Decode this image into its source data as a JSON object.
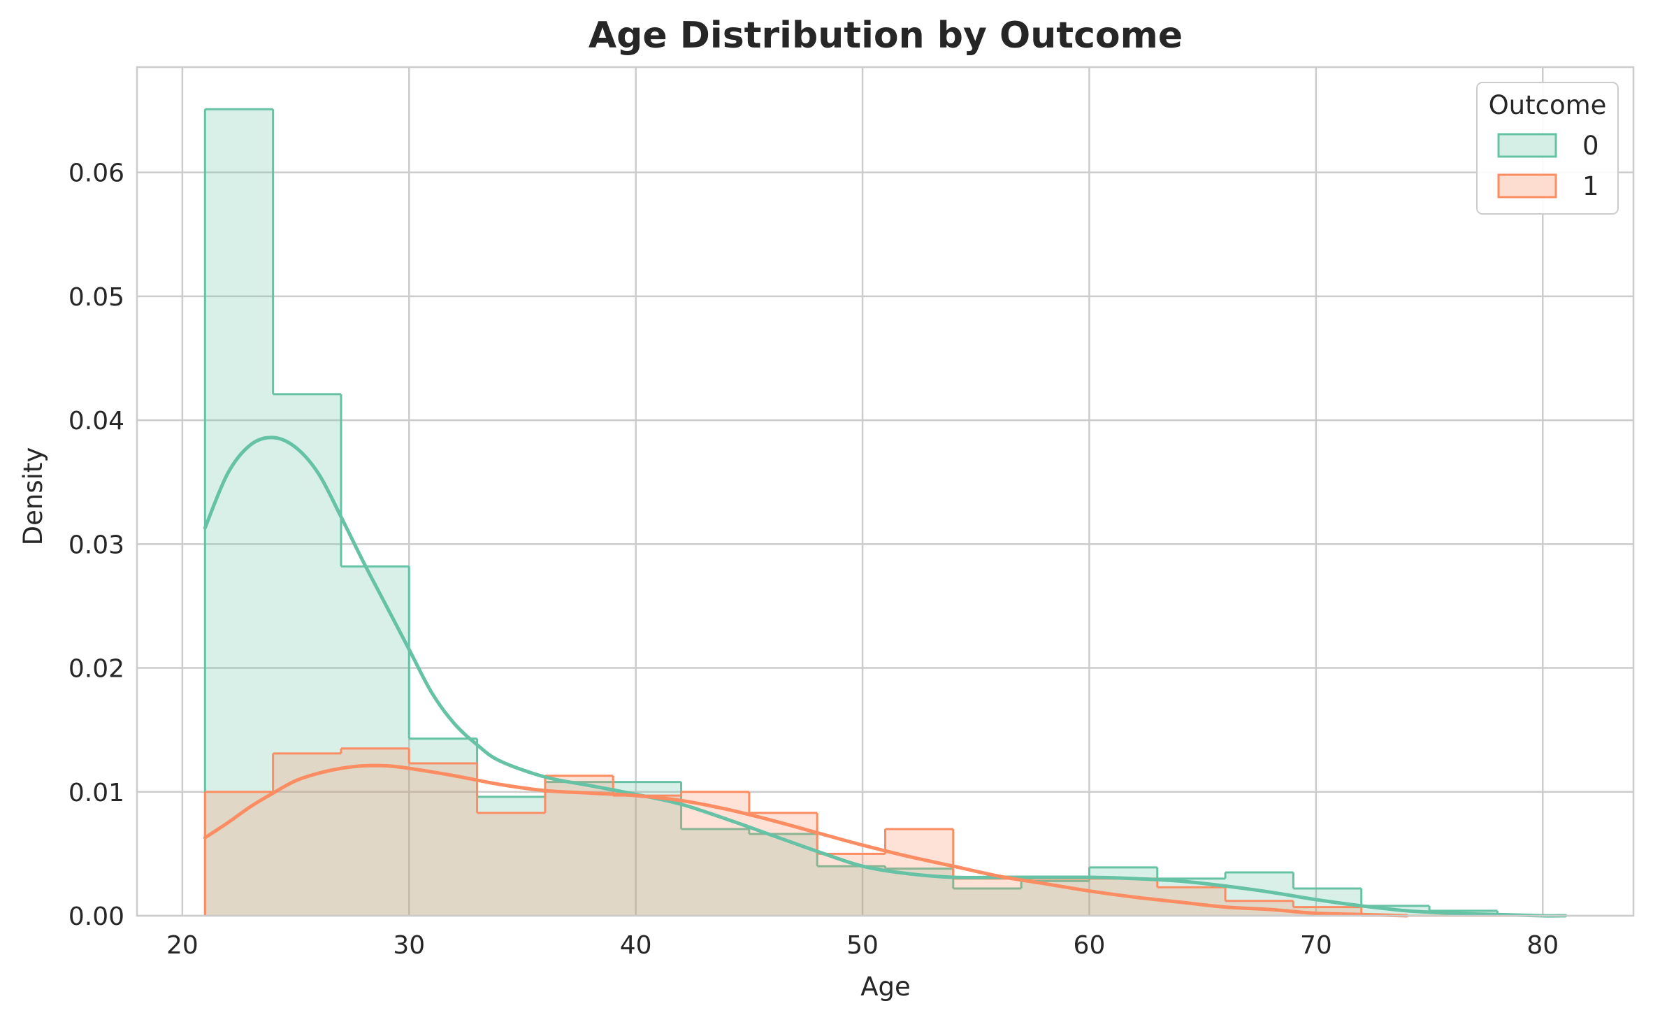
{
  "chart_data": {
    "type": "histogram",
    "title": "Age Distribution by Outcome",
    "xlabel": "Age",
    "ylabel": "Density",
    "xlim": [
      18,
      84
    ],
    "ylim": [
      0,
      0.0685
    ],
    "xticks": [
      20,
      30,
      40,
      50,
      60,
      70,
      80
    ],
    "xtick_labels": [
      "20",
      "30",
      "40",
      "50",
      "60",
      "70",
      "80"
    ],
    "yticks": [
      0,
      0.01,
      0.02,
      0.03,
      0.04,
      0.05,
      0.06
    ],
    "ytick_labels": [
      "0.00",
      "0.01",
      "0.02",
      "0.03",
      "0.04",
      "0.05",
      "0.06"
    ],
    "grid": true,
    "histtype": "step-filled",
    "kde": true,
    "bin_edges": [
      21,
      24,
      27,
      30,
      33,
      36,
      39,
      42,
      45,
      48,
      51,
      54,
      57,
      60,
      63,
      66,
      69,
      72,
      75,
      78,
      81
    ],
    "legend": {
      "title": "Outcome",
      "location": "upper right",
      "entries": [
        "0",
        "1"
      ]
    },
    "series": [
      {
        "name": "0",
        "color": "#66c2a5",
        "fill": "#d6efe6",
        "values": [
          0.0651,
          0.0421,
          0.0282,
          0.0143,
          0.0096,
          0.0108,
          0.0108,
          0.007,
          0.0066,
          0.004,
          0.0038,
          0.0022,
          0.0028,
          0.0039,
          0.003,
          0.0035,
          0.0022,
          0.0008,
          0.0004,
          0.0
        ],
        "kde": {
          "x": [
            21,
            22,
            23,
            24,
            25,
            26,
            27,
            28,
            29,
            30,
            31,
            32,
            33,
            34,
            36,
            38,
            40,
            42,
            44,
            46,
            48,
            50,
            52,
            54,
            56,
            58,
            60,
            62,
            64,
            66,
            68,
            70,
            72,
            74,
            76,
            78,
            80,
            81
          ],
          "y": [
            0.0313,
            0.0357,
            0.038,
            0.0386,
            0.0378,
            0.0357,
            0.0322,
            0.0285,
            0.025,
            0.0215,
            0.018,
            0.0155,
            0.0138,
            0.0125,
            0.0112,
            0.0105,
            0.0098,
            0.009,
            0.0078,
            0.0065,
            0.0052,
            0.004,
            0.0034,
            0.0031,
            0.0031,
            0.0031,
            0.0031,
            0.003,
            0.0028,
            0.0024,
            0.0019,
            0.0013,
            0.0008,
            0.0004,
            0.0002,
            0.0001,
            0.0,
            0.0
          ]
        }
      },
      {
        "name": "1",
        "color": "#fc8d62",
        "fill": "#fdddd0",
        "values": [
          0.01,
          0.0131,
          0.0135,
          0.0123,
          0.0083,
          0.0113,
          0.0097,
          0.01,
          0.0083,
          0.005,
          0.007,
          0.003,
          0.003,
          0.003,
          0.0023,
          0.0012,
          0.0007,
          0.0,
          0.0,
          0.0
        ],
        "kde": {
          "x": [
            21,
            22,
            23,
            24,
            25,
            26,
            27,
            28,
            29,
            30,
            32,
            34,
            36,
            38,
            40,
            42,
            44,
            46,
            48,
            50,
            52,
            54,
            56,
            58,
            60,
            62,
            64,
            66,
            68,
            70,
            72,
            74
          ],
          "y": [
            0.0063,
            0.0075,
            0.0088,
            0.0099,
            0.0109,
            0.0115,
            0.0119,
            0.0121,
            0.0121,
            0.0119,
            0.0113,
            0.0106,
            0.0101,
            0.0099,
            0.0097,
            0.0093,
            0.0086,
            0.0077,
            0.0067,
            0.0057,
            0.0048,
            0.004,
            0.0032,
            0.0026,
            0.002,
            0.0015,
            0.0011,
            0.0007,
            0.0005,
            0.0002,
            0.0001,
            0.0
          ]
        }
      }
    ]
  }
}
